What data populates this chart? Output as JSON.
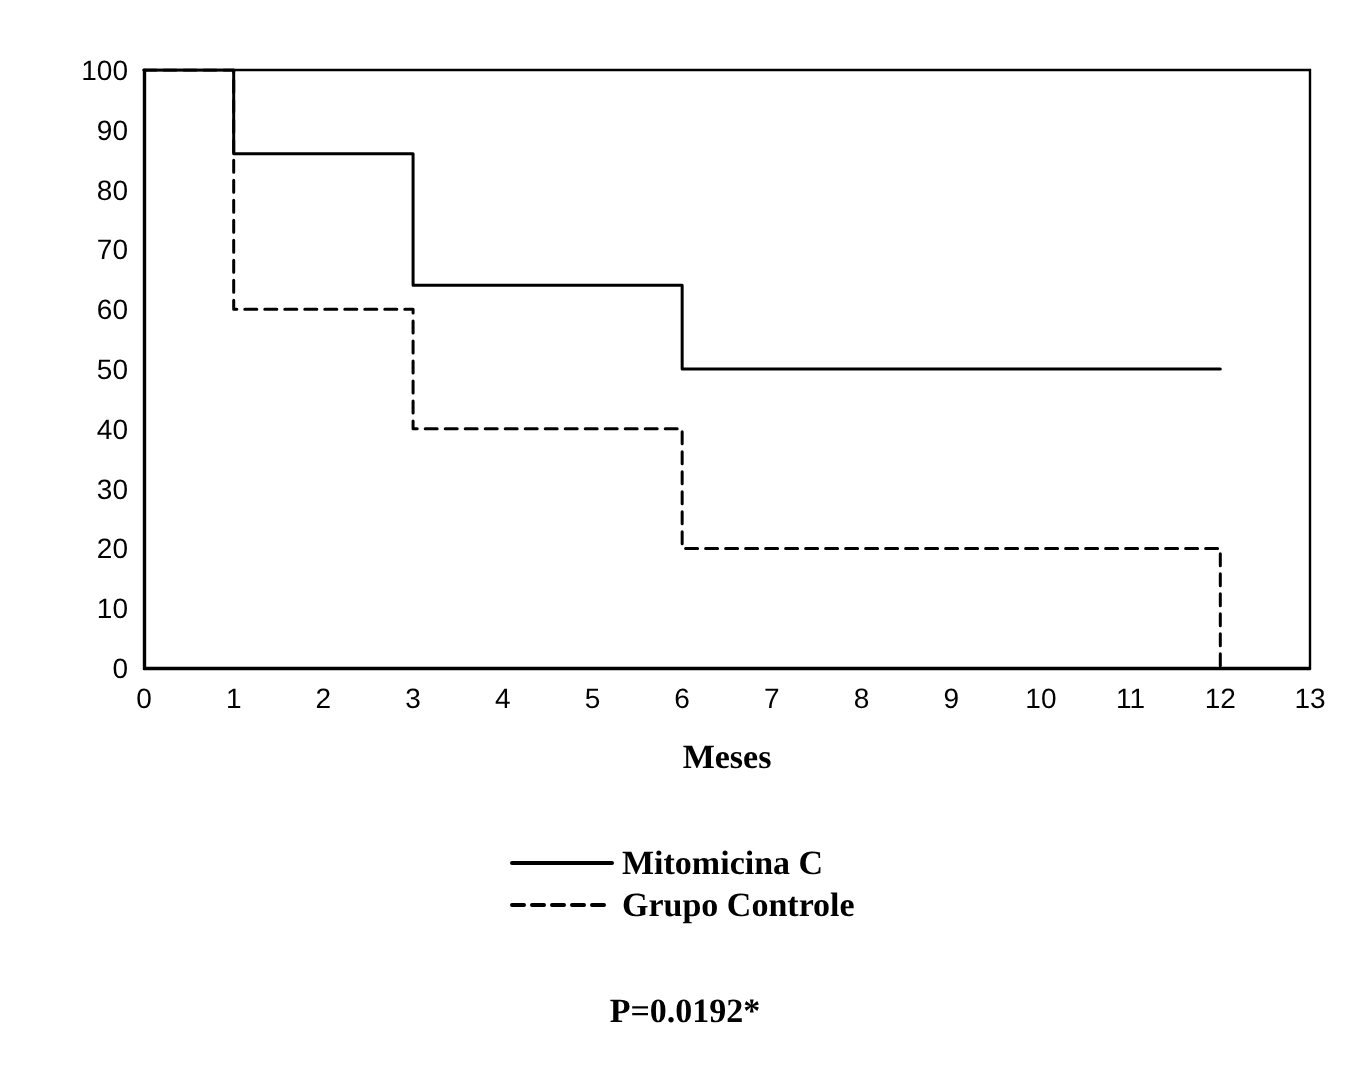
{
  "chart_data": {
    "type": "step",
    "xlabel": "Meses",
    "x": [
      0,
      1,
      3,
      6,
      12
    ],
    "series": [
      {
        "name": "Mitomicina C",
        "color": "#000000",
        "line_style": "solid",
        "values": [
          100,
          86,
          64,
          50,
          50
        ]
      },
      {
        "name": "Grupo Controle",
        "color": "#000000",
        "line_style": "dashed",
        "values": [
          100,
          60,
          40,
          20,
          0
        ]
      }
    ],
    "xlim": [
      0,
      13
    ],
    "xticks": [
      0,
      1,
      2,
      3,
      4,
      5,
      6,
      7,
      8,
      9,
      10,
      11,
      12,
      13
    ],
    "ylim": [
      0,
      100
    ],
    "yticks": [
      0,
      10,
      20,
      30,
      40,
      50,
      60,
      70,
      80,
      90,
      100
    ],
    "grid": false,
    "legend": "bottom",
    "marker": "none",
    "annotations": [
      "P=0.0192*"
    ]
  }
}
